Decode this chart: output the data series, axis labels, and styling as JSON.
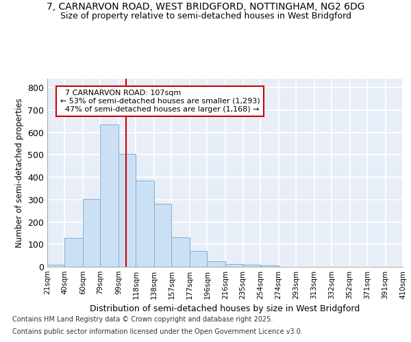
{
  "title1": "7, CARNARVON ROAD, WEST BRIDGFORD, NOTTINGHAM, NG2 6DG",
  "title2": "Size of property relative to semi-detached houses in West Bridgford",
  "xlabel": "Distribution of semi-detached houses by size in West Bridgford",
  "ylabel": "Number of semi-detached properties",
  "bar_color": "#cce0f5",
  "bar_edge_color": "#7bafd4",
  "background_color": "#e8eef8",
  "grid_color": "#ffffff",
  "bins": [
    21,
    40,
    60,
    79,
    99,
    118,
    138,
    157,
    177,
    196,
    216,
    235,
    254,
    274,
    293,
    313,
    332,
    352,
    371,
    391,
    410
  ],
  "bin_labels": [
    "21sqm",
    "40sqm",
    "60sqm",
    "79sqm",
    "99sqm",
    "118sqm",
    "138sqm",
    "157sqm",
    "177sqm",
    "196sqm",
    "216sqm",
    "235sqm",
    "254sqm",
    "274sqm",
    "293sqm",
    "313sqm",
    "332sqm",
    "352sqm",
    "371sqm",
    "391sqm",
    "410sqm"
  ],
  "values": [
    8,
    128,
    302,
    636,
    503,
    384,
    280,
    130,
    70,
    25,
    12,
    8,
    5,
    0,
    0,
    0,
    0,
    0,
    0,
    0
  ],
  "property_size": 107,
  "property_label": "7 CARNARVON ROAD: 107sqm",
  "pct_smaller": 53,
  "n_smaller": 1293,
  "pct_larger": 47,
  "n_larger": 1168,
  "vline_color": "#cc0000",
  "annotation_box_color": "#ffffff",
  "annotation_box_edge": "#cc0000",
  "footer1": "Contains HM Land Registry data © Crown copyright and database right 2025.",
  "footer2": "Contains public sector information licensed under the Open Government Licence v3.0.",
  "ylim": [
    0,
    840
  ],
  "yticks": [
    0,
    100,
    200,
    300,
    400,
    500,
    600,
    700,
    800
  ],
  "fig_bg": "#ffffff"
}
